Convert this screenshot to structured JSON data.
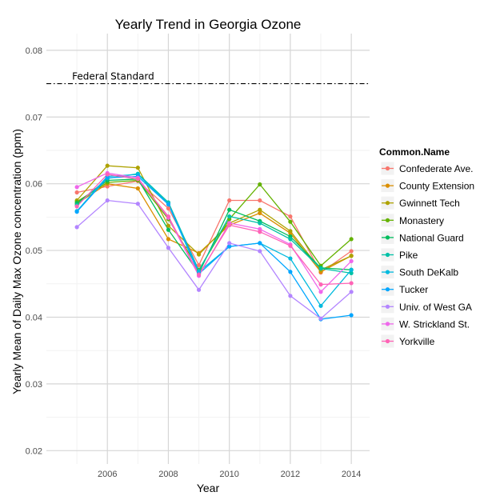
{
  "chart_data": {
    "type": "line",
    "title": "Yearly Trend in Georgia Ozone",
    "xlabel": "Year",
    "ylabel": "Yearly Mean of Daily Max Ozone concentration (ppm)",
    "xlim": [
      2004.0,
      2014.6
    ],
    "ylim": [
      0.018,
      0.0825
    ],
    "x_ticks": [
      2006,
      2008,
      2010,
      2012,
      2014
    ],
    "x_tick_labels": [
      "2006",
      "2008",
      "2010",
      "2012",
      "2014"
    ],
    "y_ticks": [
      0.02,
      0.03,
      0.04,
      0.05,
      0.06,
      0.07,
      0.08
    ],
    "y_tick_labels": [
      "0.02",
      "0.03",
      "0.04",
      "0.05",
      "0.06",
      "0.07",
      "0.08"
    ],
    "grid": true,
    "legend_title": "Common.Name",
    "legend_position": "right",
    "x": [
      2005,
      2006,
      2007,
      2008,
      2009,
      2010,
      2011,
      2012,
      2013,
      2014
    ],
    "reference_line": {
      "value": 0.075,
      "label": "Federal Standard",
      "style": "dashdot"
    },
    "series": [
      {
        "name": "Confederate Ave.",
        "color": "#F8766D",
        "values": [
          0.0587,
          0.0596,
          0.0604,
          0.0563,
          0.0478,
          0.0575,
          0.0575,
          0.0551,
          0.0467,
          0.0499
        ]
      },
      {
        "name": "County Extension",
        "color": "#DB8E00",
        "values": [
          0.057,
          0.06,
          0.0593,
          0.0517,
          0.0496,
          0.0538,
          0.0556,
          0.0526,
          0.0468,
          0.0492
        ]
      },
      {
        "name": "Gwinnett Tech",
        "color": "#AEA200",
        "values": [
          0.0575,
          0.0627,
          0.0624,
          0.0537,
          0.0494,
          0.0541,
          0.0561,
          0.0529,
          0.0471,
          0.0492
        ]
      },
      {
        "name": "Monastery",
        "color": "#64B200",
        "values": [
          0.0573,
          0.0602,
          0.0605,
          0.0547,
          0.0471,
          0.0547,
          0.0599,
          0.0543,
          0.0477,
          0.0517
        ]
      },
      {
        "name": "National Guard",
        "color": "#00BD5C",
        "values": [
          0.0571,
          0.0605,
          0.0607,
          0.0531,
          0.0466,
          0.0561,
          0.0544,
          0.0521,
          0.0474,
          0.0471
        ]
      },
      {
        "name": "Pike",
        "color": "#00C1A7",
        "values": [
          0.0568,
          0.0608,
          0.0615,
          0.0572,
          0.047,
          0.0551,
          0.0541,
          0.0517,
          0.0473,
          0.0466
        ]
      },
      {
        "name": "South DeKalb",
        "color": "#00BADE",
        "values": [
          0.0559,
          0.0611,
          0.0614,
          0.057,
          0.0468,
          0.0506,
          0.0511,
          0.0488,
          0.0417,
          0.0471
        ]
      },
      {
        "name": "Tucker",
        "color": "#00A6FF",
        "values": [
          0.0558,
          0.0609,
          0.0611,
          0.0569,
          0.0465,
          0.0506,
          0.0511,
          0.0468,
          0.0397,
          0.0403
        ]
      },
      {
        "name": "Univ. of West GA",
        "color": "#B385FF",
        "values": [
          0.0535,
          0.0575,
          0.057,
          0.0504,
          0.0441,
          0.0511,
          0.0499,
          0.0432,
          0.0398,
          0.0438
        ]
      },
      {
        "name": "W. Strickland St.",
        "color": "#EF67EB",
        "values": [
          0.0595,
          0.0616,
          0.0609,
          0.0549,
          0.0462,
          0.0541,
          0.0532,
          0.0509,
          0.0438,
          0.0484
        ]
      },
      {
        "name": "Yorkville",
        "color": "#FF63B6",
        "values": [
          0.0566,
          0.0614,
          0.0607,
          0.0551,
          0.0464,
          0.0538,
          0.0528,
          0.0507,
          0.0449,
          0.0451
        ]
      }
    ]
  }
}
